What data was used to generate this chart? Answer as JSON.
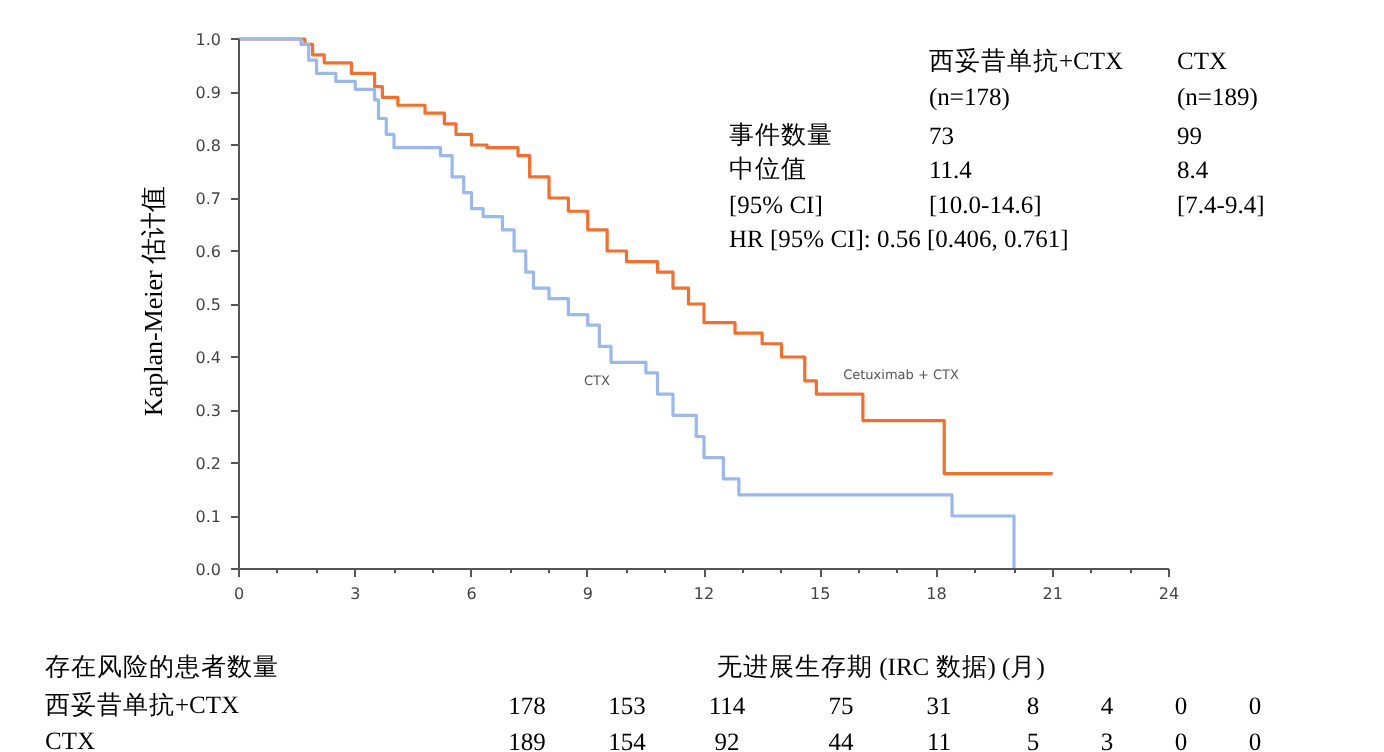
{
  "chart_data": {
    "type": "step",
    "ylabel": "Kaplan-Meier 估计值",
    "xlabel": "无进展生存期 (IRC 数据) (月)",
    "xlim": [
      0,
      24
    ],
    "xticks": [
      0,
      3,
      6,
      9,
      12,
      15,
      18,
      21,
      24
    ],
    "ylim": [
      0,
      1
    ],
    "yticks": [
      {
        "value": 0,
        "label": "0.0"
      },
      0.1,
      0.2,
      0.3,
      0.4,
      0.5,
      0.6,
      0.7,
      0.8,
      0.9,
      {
        "value": 1,
        "label": "1.0"
      }
    ],
    "grid": false,
    "legend": false,
    "series": [
      {
        "name": "Cetuximab + CTX",
        "color": "#f07030",
        "x": [
          0,
          1.7,
          1.9,
          2.2,
          2.9,
          3.5,
          3.7,
          4.1,
          4.8,
          5.3,
          5.6,
          6.0,
          6.4,
          7.2,
          7.5,
          8.0,
          8.5,
          9.0,
          9.5,
          10.0,
          10.8,
          11.2,
          11.6,
          12.0,
          12.8,
          13.5,
          14.0,
          14.6,
          14.9,
          16.1,
          18.2,
          21.0
        ],
        "values": [
          1.0,
          0.99,
          0.97,
          0.955,
          0.935,
          0.91,
          0.89,
          0.875,
          0.86,
          0.84,
          0.82,
          0.8,
          0.795,
          0.78,
          0.74,
          0.7,
          0.675,
          0.64,
          0.6,
          0.58,
          0.56,
          0.53,
          0.5,
          0.465,
          0.445,
          0.425,
          0.4,
          0.355,
          0.33,
          0.28,
          0.18,
          0.18
        ]
      },
      {
        "name": "CTX",
        "color": "#9ab8ea",
        "x": [
          0,
          1.6,
          1.8,
          2.0,
          2.5,
          3.0,
          3.5,
          3.6,
          3.8,
          4.0,
          5.2,
          5.5,
          5.8,
          6.0,
          6.3,
          6.8,
          7.1,
          7.4,
          7.6,
          8.0,
          8.5,
          9.0,
          9.3,
          9.6,
          10.5,
          10.8,
          11.2,
          11.8,
          12.0,
          12.5,
          12.9,
          18.4,
          20.0,
          20.0
        ],
        "values": [
          1.0,
          0.99,
          0.96,
          0.935,
          0.92,
          0.905,
          0.885,
          0.85,
          0.82,
          0.795,
          0.78,
          0.74,
          0.71,
          0.68,
          0.665,
          0.64,
          0.6,
          0.56,
          0.53,
          0.51,
          0.48,
          0.46,
          0.42,
          0.39,
          0.37,
          0.33,
          0.29,
          0.25,
          0.21,
          0.17,
          0.14,
          0.1,
          0.1,
          0.0
        ]
      }
    ],
    "annotations": [
      "西妥昔单抗+CTX",
      "(n=178)",
      "CTX",
      "(n=189)",
      "事件数量",
      "73",
      "99",
      "中位值",
      "11.4",
      "8.4",
      "[95% CI]",
      "[10.0-14.6]",
      "[7.4-9.4]",
      "HR [95% CI]: 0.56 [0.406, 0.761]",
      "存在风险的患者数量",
      "西妥昔单抗+CTX",
      "178",
      "153",
      "114",
      "75",
      "31",
      "8",
      "4",
      "0",
      "0",
      "CTX",
      "189",
      "154",
      "92",
      "44",
      "11",
      "5",
      "3",
      "0",
      "0"
    ]
  }
}
